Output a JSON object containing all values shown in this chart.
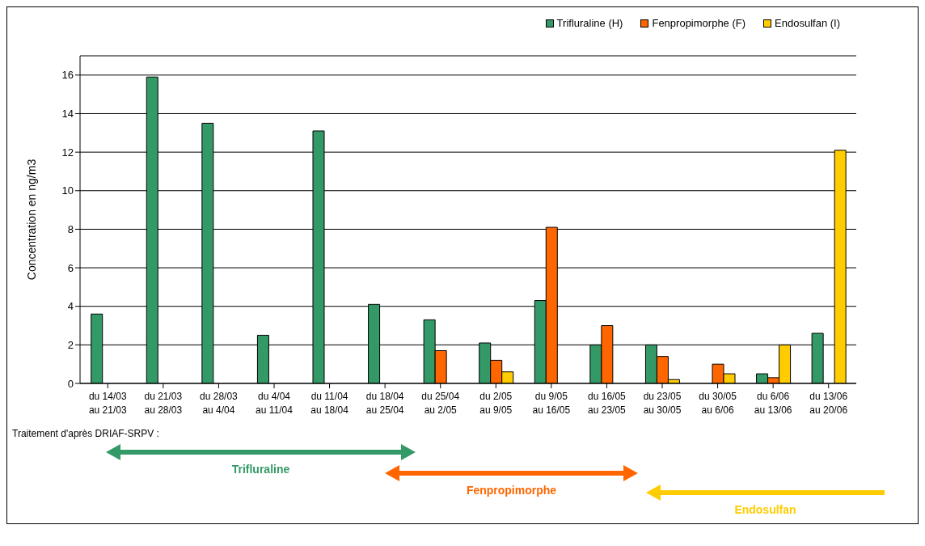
{
  "chart_data": {
    "type": "bar",
    "ylabel": "Concentration en ng/m3",
    "categories": [
      "du 14/03\nau 21/03",
      "du 21/03\nau 28/03",
      "du 28/03\nau 4/04",
      "du 4/04\nau 11/04",
      "du 11/04\nau 18/04",
      "du 18/04\nau 25/04",
      "du 25/04\nau 2/05",
      "du 2/05\nau 9/05",
      "du 9/05\nau 16/05",
      "du 16/05\nau 23/05",
      "du 23/05\nau 30/05",
      "du 30/05\nau 6/06",
      "du 6/06\nau 13/06",
      "du 13/06\nau 20/06"
    ],
    "series": [
      {
        "name": "Trifluraline (H)",
        "color": "#339966",
        "values": [
          3.6,
          15.9,
          13.5,
          2.5,
          13.1,
          4.1,
          3.3,
          2.1,
          4.3,
          2.0,
          2.0,
          0,
          0.5,
          2.6
        ]
      },
      {
        "name": "Fenpropimorphe (F)",
        "color": "#ff6600",
        "values": [
          null,
          null,
          null,
          null,
          null,
          null,
          1.7,
          1.2,
          8.1,
          3.0,
          1.4,
          1.0,
          0.3,
          null
        ]
      },
      {
        "name": "Endosulfan (I)",
        "color": "#ffcc00",
        "values": [
          null,
          null,
          null,
          null,
          null,
          null,
          null,
          0.6,
          null,
          null,
          0.2,
          0.5,
          2.0,
          12.1
        ]
      }
    ],
    "ylim": [
      0,
      17
    ],
    "yticks": [
      0,
      2,
      4,
      6,
      8,
      10,
      12,
      14,
      16
    ],
    "grid": "y",
    "legend": "top right",
    "annotations": [
      "Traitement d'après DRIAF-SRPV :",
      "Trifluraline",
      "Fenpropimorphe",
      "Endosulfan"
    ]
  }
}
